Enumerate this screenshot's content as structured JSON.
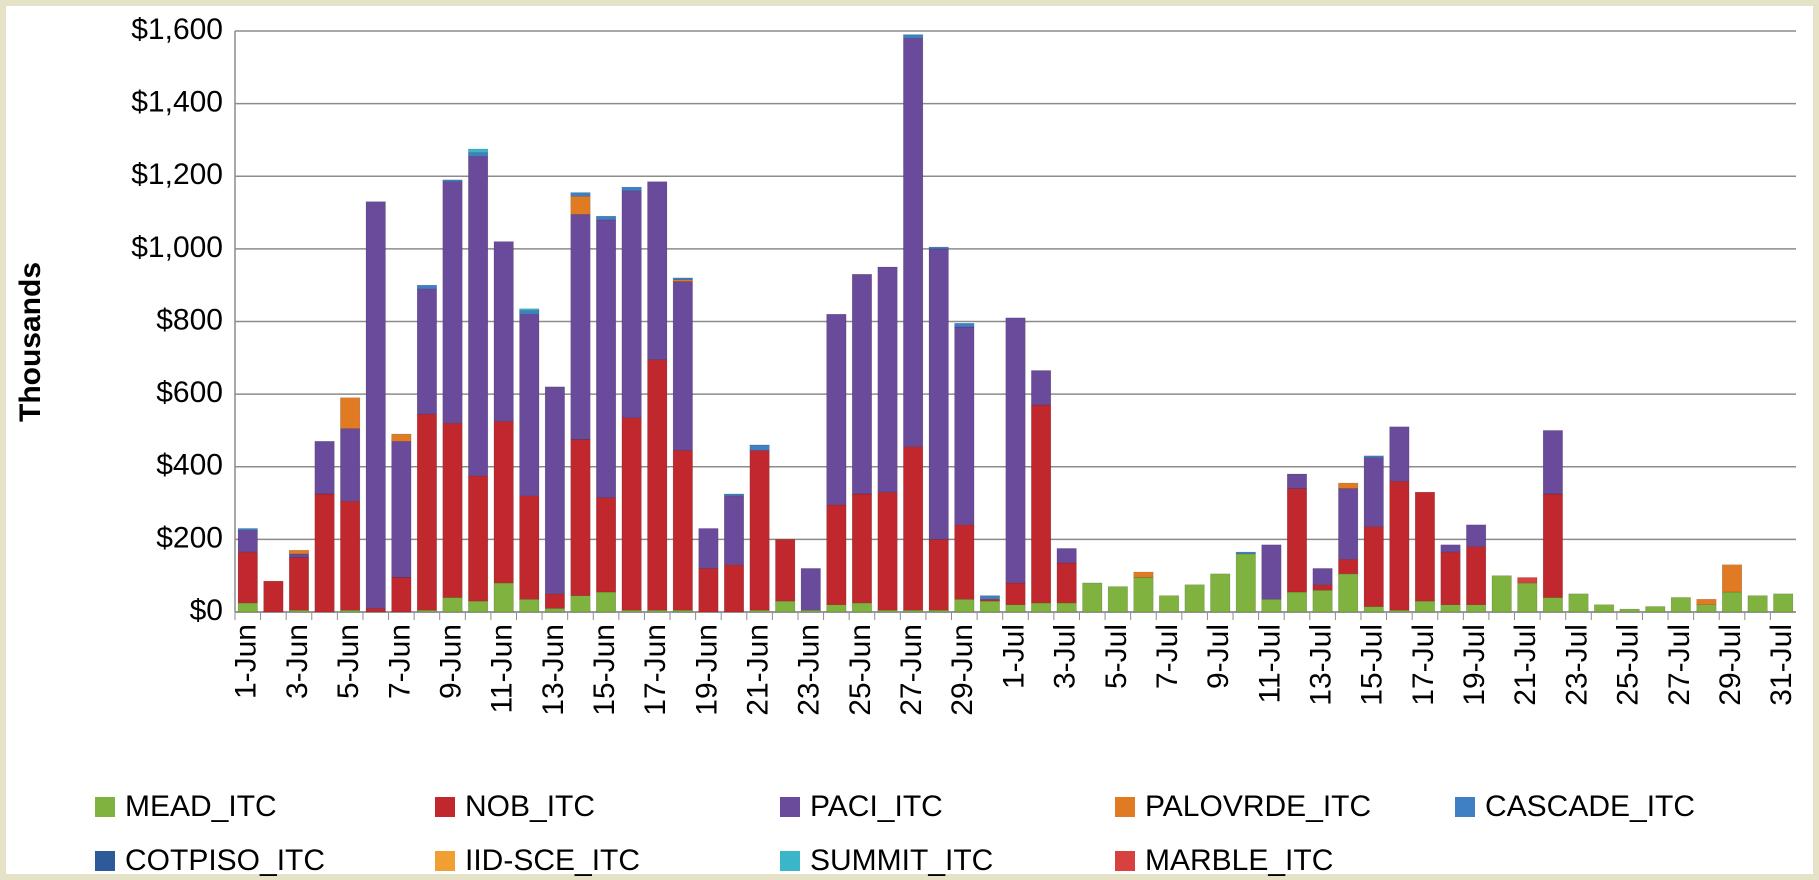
{
  "chart_data": {
    "type": "stacked_bar",
    "y_label": "Thousands",
    "categories": [
      "1-Jun",
      null,
      "3-Jun",
      null,
      "5-Jun",
      null,
      "7-Jun",
      null,
      "9-Jun",
      null,
      "11-Jun",
      null,
      "13-Jun",
      null,
      "15-Jun",
      null,
      "17-Jun",
      null,
      "19-Jun",
      null,
      "21-Jun",
      null,
      "23-Jun",
      null,
      "25-Jun",
      null,
      "27-Jun",
      null,
      "29-Jun",
      null,
      "1-Jul",
      null,
      "3-Jul",
      null,
      "5-Jul",
      null,
      "7-Jul",
      null,
      "9-Jul",
      null,
      "11-Jul",
      null,
      "13-Jul",
      null,
      "15-Jul",
      null,
      "17-Jul",
      null,
      "19-Jul",
      null,
      "21-Jul",
      null,
      "23-Jul",
      null,
      "25-Jul",
      null,
      "27-Jul",
      null,
      "29-Jul",
      null,
      "31-Jul"
    ],
    "series": [
      {
        "name": "MEAD_ITC",
        "color": "#7fb23f",
        "values": [
          25,
          0,
          5,
          0,
          5,
          0,
          0,
          5,
          40,
          30,
          80,
          35,
          10,
          45,
          55,
          5,
          5,
          5,
          0,
          0,
          5,
          30,
          5,
          20,
          25,
          5,
          5,
          5,
          35,
          30,
          20,
          25,
          25,
          80,
          70,
          95,
          45,
          75,
          105,
          160,
          35,
          55,
          60,
          105,
          15,
          5,
          30,
          20,
          20,
          100,
          80,
          40,
          50,
          20,
          8,
          15,
          40,
          20,
          55,
          45,
          50
        ]
      },
      {
        "name": "NOB_ITC",
        "color": "#c0282d",
        "values": [
          140,
          85,
          145,
          325,
          300,
          10,
          95,
          540,
          480,
          345,
          445,
          285,
          40,
          430,
          260,
          530,
          690,
          440,
          120,
          130,
          440,
          170,
          0,
          275,
          300,
          325,
          450,
          195,
          205,
          5,
          60,
          545,
          110,
          0,
          0,
          0,
          0,
          0,
          0,
          0,
          0,
          285,
          15,
          40,
          220,
          355,
          300,
          145,
          160,
          0,
          0,
          285,
          0,
          0,
          0,
          0,
          0,
          0,
          0,
          0,
          0
        ]
      },
      {
        "name": "PACI_ITC",
        "color": "#6a4a9a",
        "values": [
          60,
          0,
          10,
          145,
          200,
          1120,
          375,
          345,
          665,
          880,
          495,
          500,
          570,
          620,
          765,
          625,
          490,
          465,
          110,
          190,
          0,
          0,
          115,
          525,
          605,
          620,
          1125,
          800,
          545,
          0,
          730,
          95,
          40,
          0,
          0,
          0,
          0,
          0,
          0,
          0,
          150,
          40,
          45,
          195,
          190,
          150,
          0,
          20,
          60,
          0,
          0,
          175,
          0,
          0,
          0,
          0,
          0,
          0,
          0,
          0,
          0
        ]
      },
      {
        "name": "PALOVRDE_ITC",
        "color": "#e07b24",
        "values": [
          0,
          0,
          10,
          0,
          85,
          0,
          20,
          0,
          0,
          0,
          0,
          0,
          0,
          50,
          0,
          0,
          0,
          5,
          0,
          0,
          0,
          0,
          0,
          0,
          0,
          0,
          0,
          0,
          0,
          0,
          0,
          0,
          0,
          0,
          0,
          15,
          0,
          0,
          0,
          0,
          0,
          0,
          0,
          15,
          0,
          0,
          0,
          0,
          0,
          0,
          0,
          0,
          0,
          0,
          0,
          0,
          0,
          15,
          75,
          0,
          0
        ]
      },
      {
        "name": "CASCADE_ITC",
        "color": "#3f7fc4",
        "values": [
          5,
          0,
          0,
          0,
          0,
          0,
          0,
          10,
          5,
          10,
          0,
          10,
          0,
          10,
          10,
          10,
          0,
          5,
          0,
          5,
          15,
          0,
          0,
          0,
          0,
          0,
          10,
          5,
          10,
          10,
          0,
          0,
          0,
          0,
          0,
          0,
          0,
          0,
          0,
          5,
          0,
          0,
          0,
          0,
          5,
          0,
          0,
          0,
          0,
          0,
          0,
          0,
          0,
          0,
          0,
          0,
          0,
          0,
          0,
          0,
          0
        ]
      },
      {
        "name": "COTPISO_ITC",
        "color": "#2f5a9a",
        "values": [
          0,
          0,
          0,
          0,
          0,
          0,
          0,
          0,
          0,
          0,
          0,
          0,
          0,
          0,
          0,
          0,
          0,
          0,
          0,
          0,
          0,
          0,
          0,
          0,
          0,
          0,
          0,
          0,
          0,
          0,
          0,
          0,
          0,
          0,
          0,
          0,
          0,
          0,
          0,
          0,
          0,
          0,
          0,
          0,
          0,
          0,
          0,
          0,
          0,
          0,
          0,
          0,
          0,
          0,
          0,
          0,
          0,
          0,
          0,
          0,
          0
        ]
      },
      {
        "name": "IID-SCE_ITC",
        "color": "#f0a030",
        "values": [
          0,
          0,
          0,
          0,
          0,
          0,
          0,
          0,
          0,
          0,
          0,
          0,
          0,
          0,
          0,
          0,
          0,
          0,
          0,
          0,
          0,
          0,
          0,
          0,
          0,
          0,
          0,
          0,
          0,
          0,
          0,
          0,
          0,
          0,
          0,
          0,
          0,
          0,
          0,
          0,
          0,
          0,
          0,
          0,
          0,
          0,
          0,
          0,
          0,
          0,
          0,
          0,
          0,
          0,
          0,
          0,
          0,
          0,
          0,
          0,
          0
        ]
      },
      {
        "name": "SUMMIT_ITC",
        "color": "#3bb5c8",
        "values": [
          0,
          0,
          0,
          0,
          0,
          0,
          0,
          0,
          0,
          10,
          0,
          5,
          0,
          0,
          0,
          0,
          0,
          0,
          0,
          0,
          0,
          0,
          0,
          0,
          0,
          0,
          0,
          0,
          0,
          0,
          0,
          0,
          0,
          0,
          0,
          0,
          0,
          0,
          0,
          0,
          0,
          0,
          0,
          0,
          0,
          0,
          0,
          0,
          0,
          0,
          0,
          0,
          0,
          0,
          0,
          0,
          0,
          0,
          0,
          0,
          0
        ]
      },
      {
        "name": "MARBLE_ITC",
        "color": "#d94040",
        "values": [
          0,
          0,
          0,
          0,
          0,
          0,
          0,
          0,
          0,
          0,
          0,
          0,
          0,
          0,
          0,
          0,
          0,
          0,
          0,
          0,
          0,
          0,
          0,
          0,
          0,
          0,
          0,
          0,
          0,
          0,
          0,
          0,
          0,
          0,
          0,
          0,
          0,
          0,
          0,
          0,
          0,
          0,
          0,
          0,
          0,
          0,
          0,
          0,
          0,
          0,
          15,
          0,
          0,
          0,
          0,
          0,
          0,
          0,
          0,
          0,
          0
        ]
      }
    ],
    "ylim": [
      0,
      1600
    ],
    "yticks": [
      {
        "value": 0,
        "label": "$0"
      },
      {
        "value": 200,
        "label": "$200"
      },
      {
        "value": 400,
        "label": "$400"
      },
      {
        "value": 600,
        "label": "$600"
      },
      {
        "value": 800,
        "label": "$800"
      },
      {
        "value": 1000,
        "label": "$1,000"
      },
      {
        "value": 1200,
        "label": "$1,200"
      },
      {
        "value": 1400,
        "label": "$1,400"
      },
      {
        "value": 1600,
        "label": "$1,600"
      }
    ],
    "grid": true,
    "legend": "bottom"
  }
}
